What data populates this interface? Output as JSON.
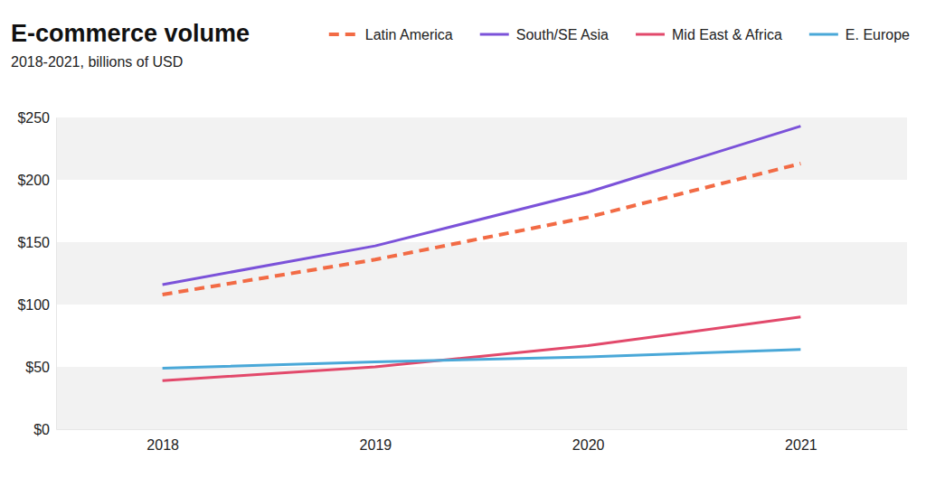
{
  "chart_data": {
    "type": "line",
    "title": "E-commerce volume",
    "subtitle": "2018-2021, billions of USD",
    "categories": [
      "2018",
      "2019",
      "2020",
      "2021"
    ],
    "series": [
      {
        "name": "Latin America",
        "color": "#f26b45",
        "line_style": "dashed",
        "values": [
          108,
          136,
          170,
          213
        ]
      },
      {
        "name": "South/SE Asia",
        "color": "#7b52d9",
        "line_style": "solid",
        "values": [
          116,
          147,
          190,
          243
        ]
      },
      {
        "name": "Mid East & Africa",
        "color": "#e2496b",
        "line_style": "solid",
        "values": [
          39,
          50,
          67,
          90
        ]
      },
      {
        "name": "E. Europe",
        "color": "#4aa8d8",
        "line_style": "solid",
        "values": [
          49,
          54,
          58,
          64
        ]
      }
    ],
    "ylim": [
      0,
      250
    ],
    "yticks": [
      {
        "value": 0,
        "label": "$0"
      },
      {
        "value": 50,
        "label": "$50"
      },
      {
        "value": 100,
        "label": "$100"
      },
      {
        "value": 150,
        "label": "$150"
      },
      {
        "value": 200,
        "label": "$200"
      },
      {
        "value": 250,
        "label": "$250"
      }
    ],
    "grid": true,
    "legend": "top-right"
  }
}
